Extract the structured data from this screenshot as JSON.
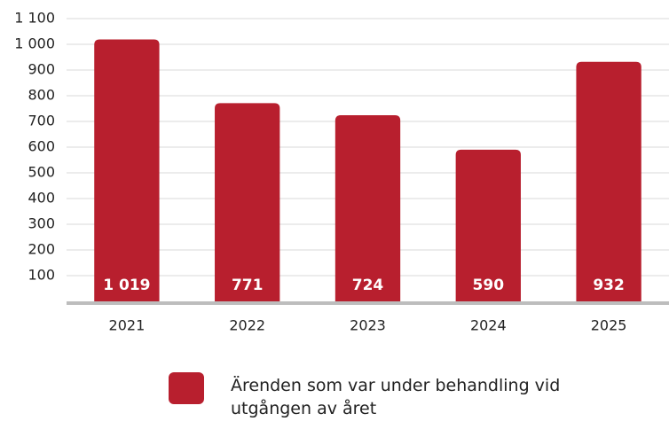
{
  "chart_data": {
    "type": "bar",
    "categories": [
      "2021",
      "2022",
      "2023",
      "2024",
      "2025"
    ],
    "series": [
      {
        "name": "Ärenden som var under behandling vid utgången av året",
        "color": "#b81f2e",
        "values": [
          1019,
          771,
          724,
          590,
          932
        ],
        "value_labels": [
          "1 019",
          "771",
          "724",
          "590",
          "932"
        ]
      }
    ],
    "ylim": [
      0,
      1100
    ],
    "yticks": [
      100,
      200,
      300,
      400,
      500,
      600,
      700,
      800,
      900,
      {
        "value": 1000,
        "label": "1 000"
      },
      {
        "value": 1100,
        "label": "1 100"
      }
    ],
    "grid": true
  }
}
